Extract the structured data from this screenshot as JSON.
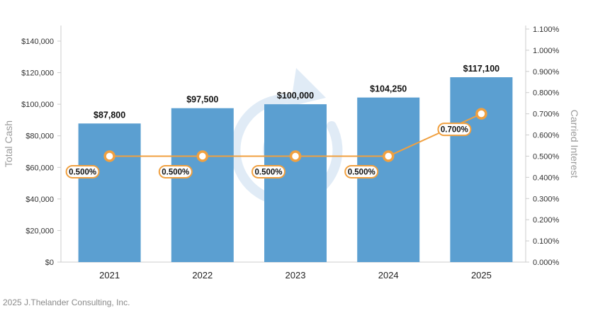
{
  "footer": "2025 J.Thelander Consulting, Inc.",
  "colors": {
    "bar": "#5b9fd1",
    "line": "#f0a040",
    "watermark": "#c7dcef"
  },
  "chart_data": {
    "type": "bar",
    "categories": [
      "2021",
      "2022",
      "2023",
      "2024",
      "2025"
    ],
    "series": [
      {
        "type": "bar",
        "axis": "left",
        "values": [
          87800,
          97500,
          100000,
          104250,
          117100
        ],
        "labels": [
          "$87,800",
          "$97,500",
          "$100,000",
          "$104,250",
          "$117,100"
        ]
      },
      {
        "type": "line",
        "axis": "right",
        "values": [
          0.5,
          0.5,
          0.5,
          0.5,
          0.7
        ],
        "labels": [
          "0.500%",
          "0.500%",
          "0.500%",
          "0.500%",
          "0.700%"
        ]
      }
    ],
    "ylabel": "Total Cash",
    "y2label": "Carried Interest",
    "ylim": [
      0,
      140000
    ],
    "y2lim": [
      0,
      1.1
    ],
    "yticks": [
      "$0",
      "$20,000",
      "$40,000",
      "$60,000",
      "$80,000",
      "$100,000",
      "$120,000",
      "$140,000"
    ],
    "y2ticks": [
      "0.000%",
      "0.100%",
      "0.200%",
      "0.300%",
      "0.400%",
      "0.500%",
      "0.600%",
      "0.700%",
      "0.800%",
      "0.900%",
      "1.000%",
      "1.100%"
    ],
    "grid": false
  }
}
